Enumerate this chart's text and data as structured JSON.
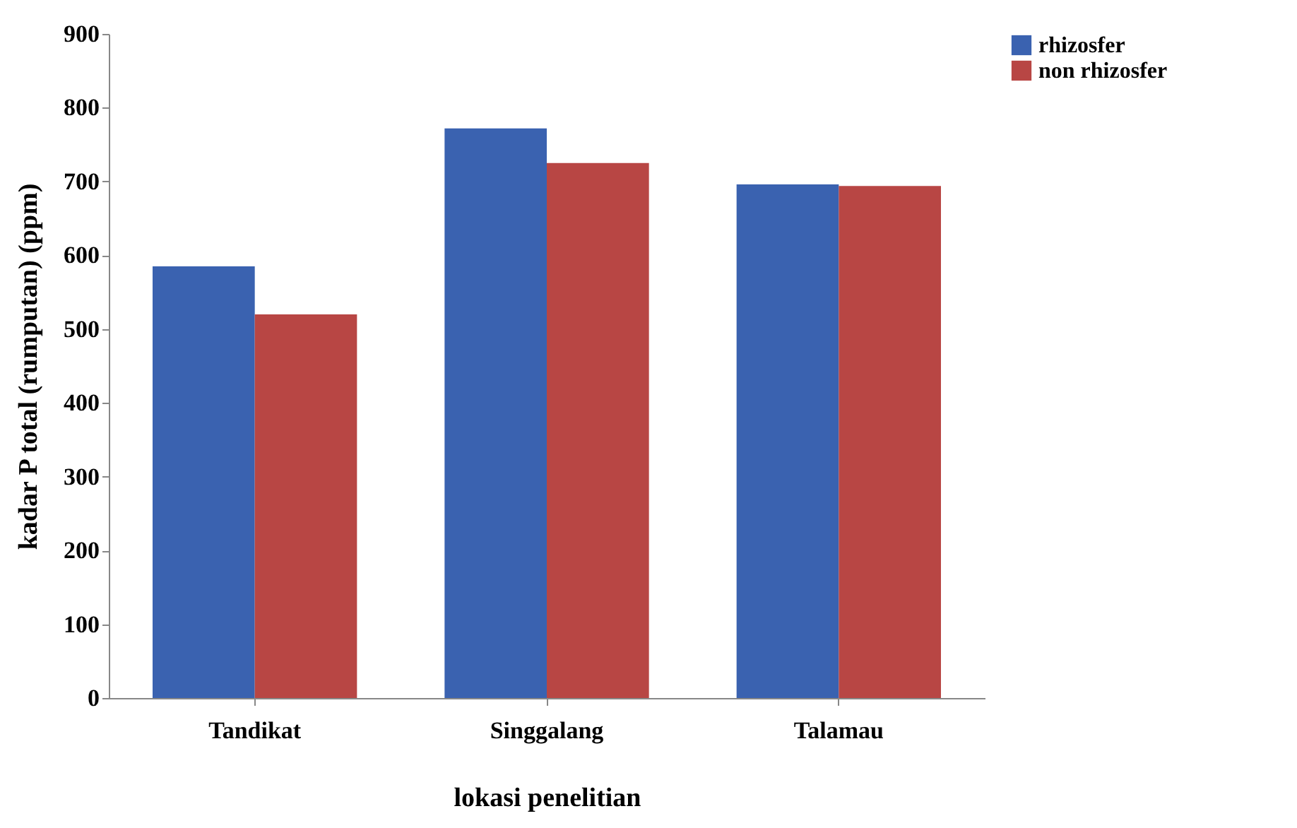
{
  "chart_data": {
    "type": "bar",
    "xlabel": "lokasi penelitian",
    "ylabel": "kadar P total (rumputan) (ppm)",
    "categories": [
      "Tandikat",
      "Singgalang",
      "Talamau"
    ],
    "series": [
      {
        "name": "rhizosfer",
        "color": "#3a62b0",
        "values": [
          585,
          772,
          696
        ]
      },
      {
        "name": "non rhizosfer",
        "color": "#b84644",
        "values": [
          520,
          725,
          694
        ]
      }
    ],
    "ylim": [
      0,
      900
    ],
    "yticks": [
      0,
      100,
      200,
      300,
      400,
      500,
      600,
      700,
      800,
      900
    ],
    "grid": false,
    "legend": "right"
  }
}
